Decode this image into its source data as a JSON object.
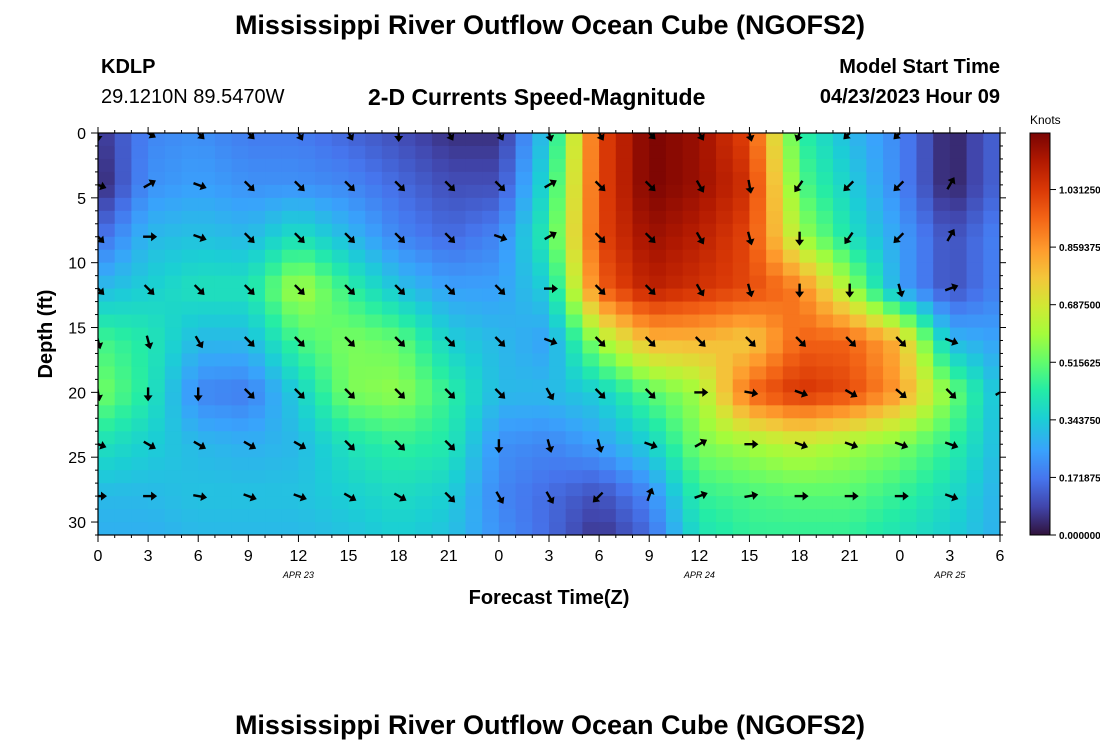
{
  "page": {
    "title": "Mississippi River Outflow Ocean Cube (NGOFS2)",
    "title_repeat": "Mississippi River Outflow Ocean Cube (NGOFS2)",
    "station": "KDLP",
    "coords": "29.1210N  89.5470W",
    "subtitle": "2-D Currents Speed-Magnitude",
    "model_start_label": "Model Start Time",
    "model_start_value": "04/23/2023 Hour 09"
  },
  "chart_data": {
    "type": "heatmap",
    "title": "2-D Currents Speed-Magnitude",
    "xlabel": "Forecast Time(Z)",
    "ylabel": "Depth (ft)",
    "x_tick_labels": [
      "0",
      "3",
      "6",
      "9",
      "12",
      "15",
      "18",
      "21",
      "0",
      "3",
      "6",
      "9",
      "12",
      "15",
      "18",
      "21",
      "0",
      "3",
      "6"
    ],
    "x_hours": [
      0,
      3,
      6,
      9,
      12,
      15,
      18,
      21,
      24,
      27,
      30,
      33,
      36,
      39,
      42,
      45,
      48,
      51,
      54
    ],
    "date_labels": [
      {
        "text": "APR 23",
        "hour": 12
      },
      {
        "text": "APR 24",
        "hour": 36
      },
      {
        "text": "APR 25",
        "hour": 51
      }
    ],
    "xlim": [
      0,
      54
    ],
    "ylim": [
      0,
      31
    ],
    "y_inverted": true,
    "y_ticks": [
      0,
      5,
      10,
      15,
      20,
      25,
      30
    ],
    "y_tick_labels": [
      "0",
      "5",
      "10",
      "15",
      "20",
      "25",
      "30"
    ],
    "colorbar": {
      "title": "Knots",
      "range": [
        0,
        1.2
      ],
      "tick_values": [
        0.0,
        0.171875,
        0.34375,
        0.515625,
        0.6875,
        0.859375,
        1.03125
      ],
      "tick_labels": [
        "0.000000",
        "0.171875",
        "0.343750",
        "0.515625",
        "0.687500",
        "0.859375",
        "1.031250"
      ]
    },
    "speed_field": {
      "x_hours": [
        0,
        3,
        6,
        9,
        12,
        15,
        18,
        21,
        24,
        27,
        30,
        33,
        36,
        39,
        42,
        45,
        48,
        51,
        54
      ],
      "depths": [
        0,
        4,
        8,
        12,
        16,
        20,
        24,
        28,
        31
      ],
      "values": [
        [
          0.05,
          0.2,
          0.22,
          0.18,
          0.18,
          0.14,
          0.1,
          0.05,
          0.05,
          0.35,
          1.0,
          1.2,
          1.15,
          1.0,
          0.45,
          0.3,
          0.2,
          0.02,
          0.15
        ],
        [
          0.02,
          0.22,
          0.25,
          0.22,
          0.22,
          0.2,
          0.15,
          0.1,
          0.1,
          0.4,
          1.0,
          1.2,
          1.15,
          1.05,
          0.5,
          0.35,
          0.2,
          0.02,
          0.15
        ],
        [
          0.15,
          0.3,
          0.32,
          0.3,
          0.4,
          0.3,
          0.2,
          0.15,
          0.2,
          0.45,
          1.0,
          1.15,
          1.1,
          1.0,
          0.6,
          0.4,
          0.25,
          0.1,
          0.2
        ],
        [
          0.3,
          0.35,
          0.4,
          0.4,
          0.62,
          0.45,
          0.32,
          0.25,
          0.25,
          0.35,
          0.95,
          1.1,
          1.05,
          1.0,
          0.9,
          0.6,
          0.25,
          0.1,
          0.2
        ],
        [
          0.48,
          0.42,
          0.3,
          0.3,
          0.48,
          0.55,
          0.52,
          0.35,
          0.3,
          0.25,
          0.6,
          0.8,
          0.8,
          0.75,
          0.95,
          0.95,
          0.8,
          0.3,
          0.25
        ],
        [
          0.55,
          0.42,
          0.2,
          0.18,
          0.35,
          0.55,
          0.58,
          0.45,
          0.3,
          0.3,
          0.35,
          0.5,
          0.6,
          0.95,
          1.05,
          1.0,
          0.85,
          0.55,
          0.3
        ],
        [
          0.4,
          0.35,
          0.3,
          0.28,
          0.3,
          0.4,
          0.45,
          0.42,
          0.22,
          0.2,
          0.25,
          0.35,
          0.55,
          0.6,
          0.65,
          0.6,
          0.55,
          0.45,
          0.3
        ],
        [
          0.3,
          0.3,
          0.32,
          0.32,
          0.32,
          0.35,
          0.38,
          0.35,
          0.2,
          0.15,
          0.1,
          0.2,
          0.45,
          0.48,
          0.5,
          0.5,
          0.45,
          0.38,
          0.28
        ],
        [
          0.28,
          0.28,
          0.3,
          0.3,
          0.3,
          0.32,
          0.35,
          0.32,
          0.22,
          0.15,
          0.05,
          0.15,
          0.4,
          0.45,
          0.45,
          0.45,
          0.4,
          0.35,
          0.28
        ]
      ]
    },
    "vectors": {
      "x_hours": [
        0,
        3,
        6,
        9,
        12,
        15,
        18,
        21,
        24,
        27,
        30,
        33,
        36,
        39,
        42,
        45,
        48,
        51,
        54
      ],
      "depths": [
        0,
        4,
        8,
        12,
        16,
        20,
        24,
        28
      ],
      "directions_deg": [
        [
          180,
          120,
          135,
          135,
          150,
          150,
          180,
          150,
          150,
          165,
          150,
          135,
          150,
          165,
          200,
          225,
          225,
          null,
          null
        ],
        [
          110,
          60,
          110,
          135,
          135,
          135,
          135,
          135,
          135,
          60,
          135,
          135,
          150,
          170,
          215,
          225,
          225,
          30,
          null
        ],
        [
          135,
          90,
          110,
          135,
          135,
          135,
          135,
          135,
          110,
          60,
          135,
          135,
          150,
          165,
          180,
          215,
          225,
          30,
          null
        ],
        [
          135,
          135,
          135,
          135,
          135,
          135,
          135,
          135,
          135,
          90,
          135,
          135,
          150,
          165,
          180,
          180,
          165,
          70,
          null
        ],
        [
          165,
          165,
          150,
          135,
          135,
          135,
          135,
          135,
          135,
          110,
          135,
          135,
          135,
          135,
          135,
          135,
          135,
          110,
          null
        ],
        [
          170,
          180,
          180,
          135,
          135,
          135,
          135,
          135,
          135,
          150,
          135,
          135,
          90,
          100,
          110,
          120,
          130,
          135,
          60
        ],
        [
          110,
          120,
          120,
          120,
          120,
          135,
          135,
          135,
          180,
          165,
          165,
          110,
          60,
          90,
          110,
          110,
          110,
          110,
          null
        ],
        [
          90,
          90,
          100,
          110,
          110,
          120,
          120,
          135,
          150,
          150,
          225,
          20,
          70,
          80,
          90,
          90,
          90,
          110,
          null
        ]
      ]
    }
  }
}
